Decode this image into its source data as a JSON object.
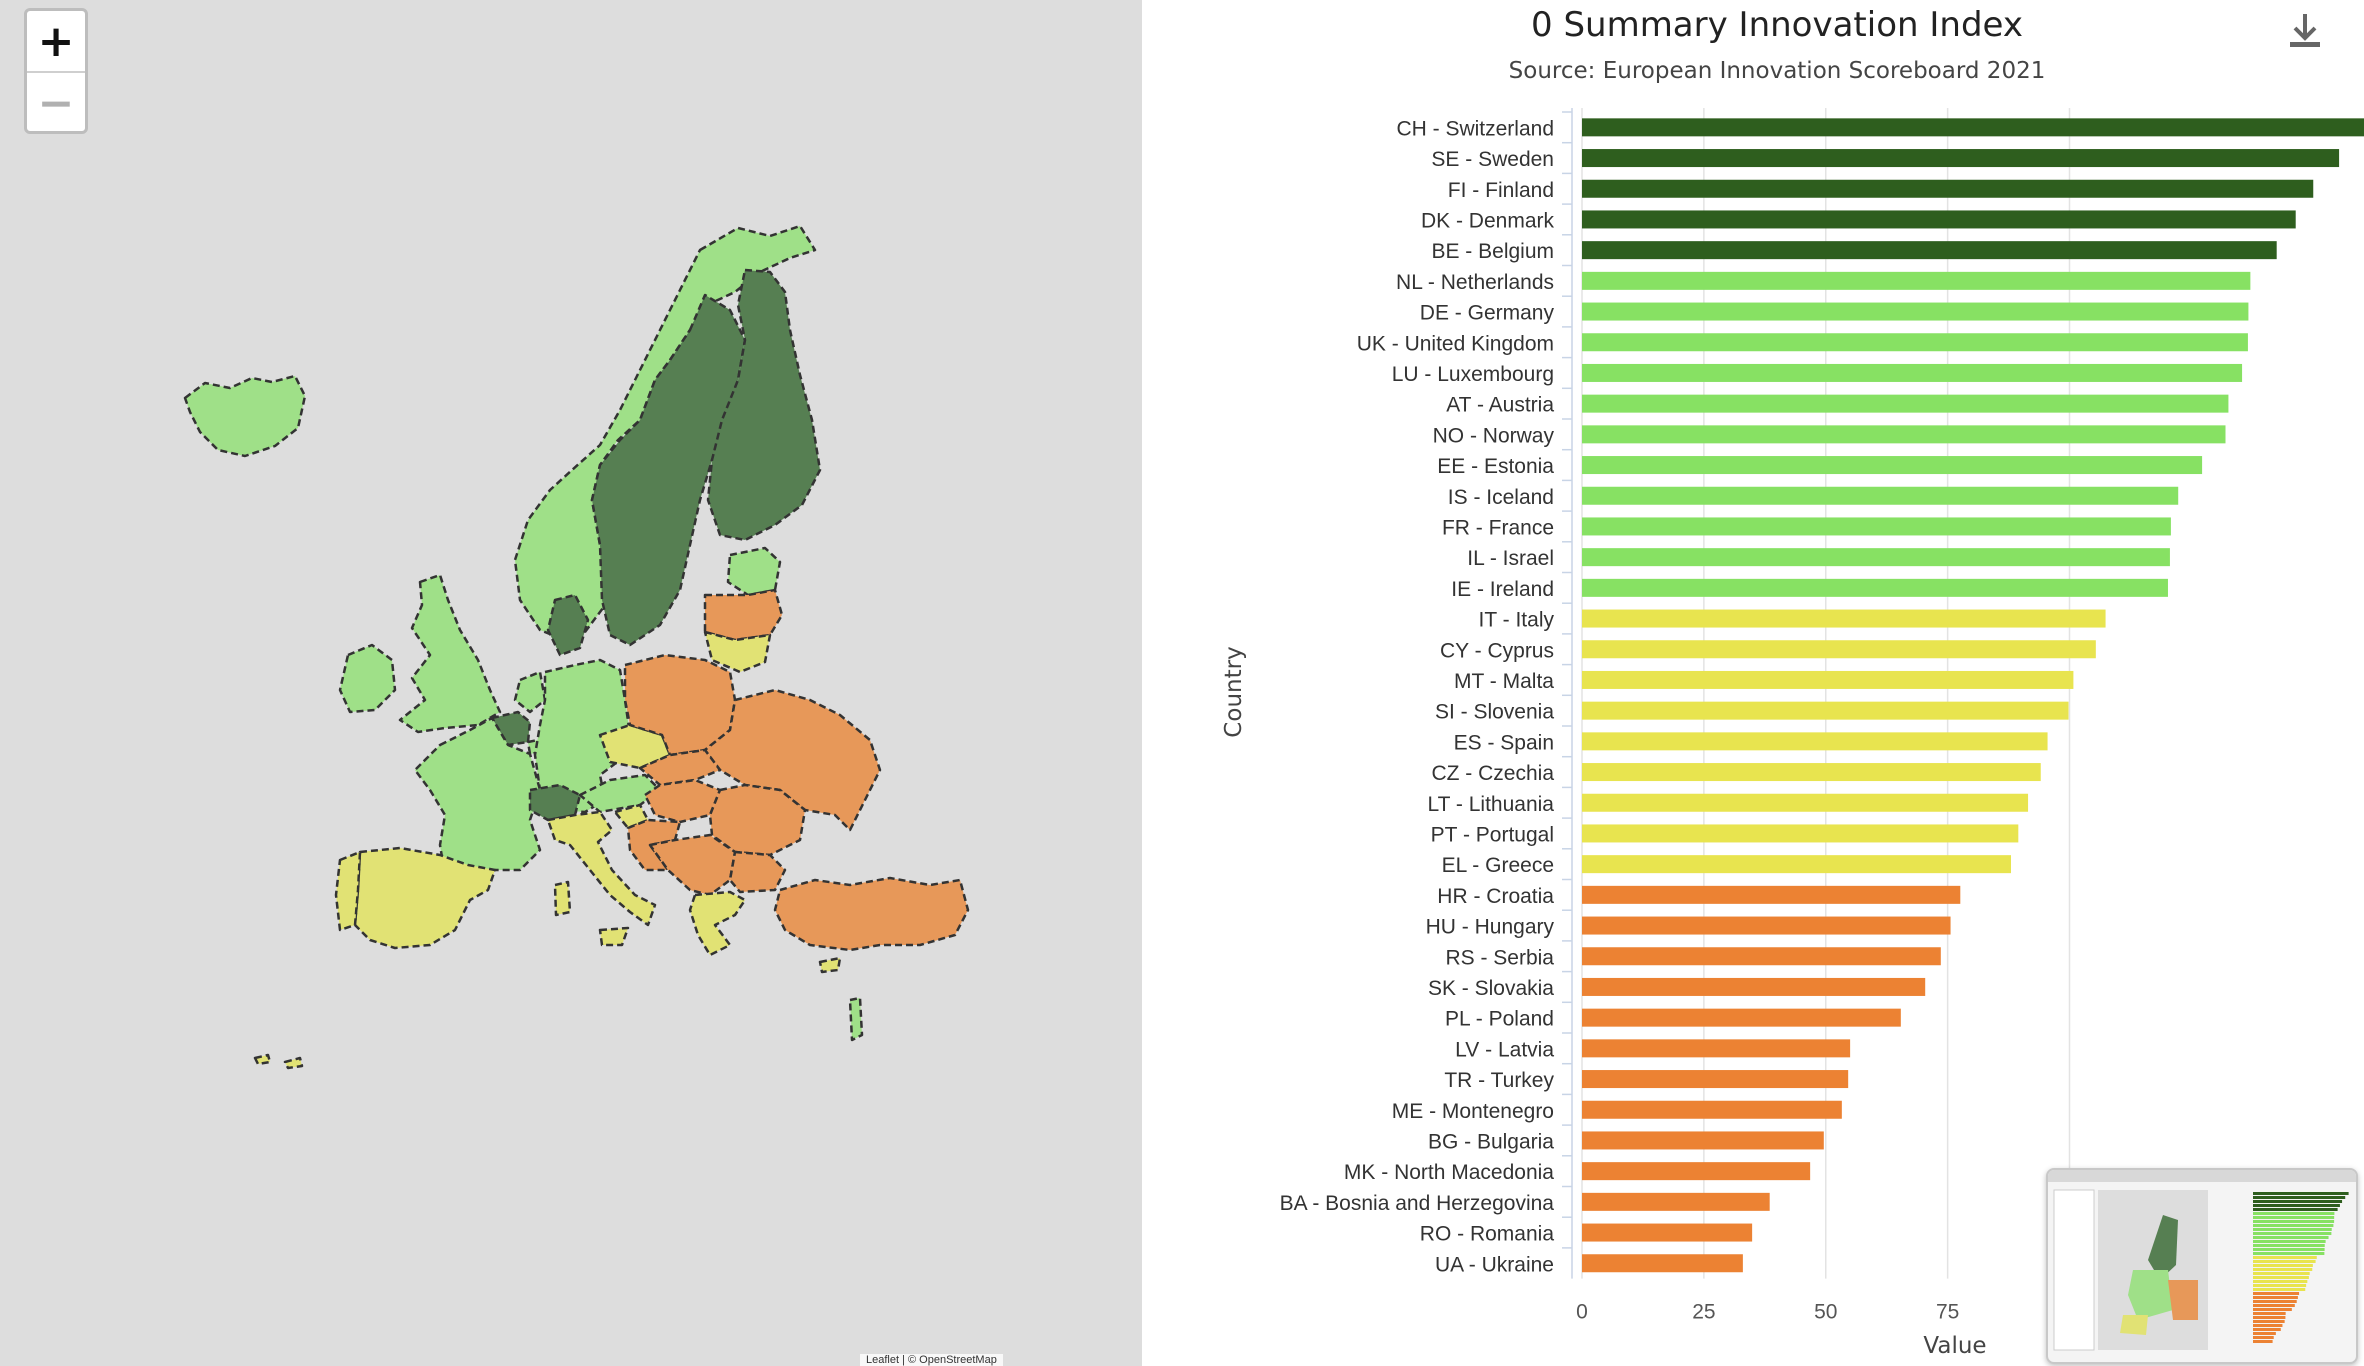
{
  "map": {
    "zoom_in_label": "+",
    "zoom_out_label": "−",
    "attribution": "Leaflet | © OpenStreetMap",
    "colors": {
      "leader": "#567f52",
      "strong": "#9fe088",
      "moderate": "#e1e274",
      "emerging": "#e79859",
      "background": "#dddddd",
      "outline": "#333333"
    }
  },
  "chart_data": {
    "type": "bar",
    "orientation": "horizontal",
    "title": "0 Summary Innovation Index",
    "subtitle": "Source: European Innovation Scoreboard 2021",
    "xlabel": "Value",
    "ylabel": "Country",
    "xlim": [
      0,
      160
    ],
    "xticks": [
      0,
      25,
      50,
      75,
      100
    ],
    "grid": true,
    "categories": [
      "CH - Switzerland",
      "SE - Sweden",
      "FI - Finland",
      "DK - Denmark",
      "BE - Belgium",
      "NL - Netherlands",
      "DE - Germany",
      "UK - United Kingdom",
      "LU - Luxembourg",
      "AT - Austria",
      "NO - Norway",
      "EE - Estonia",
      "IS - Iceland",
      "FR - France",
      "IL - Israel",
      "IE - Ireland",
      "IT - Italy",
      "CY - Cyprus",
      "MT - Malta",
      "SI - Slovenia",
      "ES - Spain",
      "CZ - Czechia",
      "LT - Lithuania",
      "PT - Portugal",
      "EL - Greece",
      "HR - Croatia",
      "HU - Hungary",
      "RS - Serbia",
      "SK - Slovakia",
      "PL - Poland",
      "LV - Latvia",
      "TR - Turkey",
      "ME - Montenegro",
      "BG - Bulgaria",
      "MK - North Macedonia",
      "BA - Bosnia and Herzegovina",
      "RO - Romania",
      "UA - Ukraine"
    ],
    "values": [
      161.0,
      155.3,
      150.0,
      146.4,
      142.5,
      137.1,
      136.7,
      136.6,
      135.4,
      132.6,
      132.0,
      127.2,
      122.3,
      120.8,
      120.6,
      120.2,
      107.4,
      105.4,
      100.8,
      99.8,
      95.5,
      94.1,
      91.5,
      89.5,
      88.0,
      77.6,
      75.6,
      73.6,
      70.4,
      65.4,
      55.0,
      54.6,
      53.3,
      49.6,
      46.8,
      38.5,
      34.9,
      33.0
    ],
    "groups": [
      "leader",
      "leader",
      "leader",
      "leader",
      "leader",
      "strong",
      "strong",
      "strong",
      "strong",
      "strong",
      "strong",
      "strong",
      "strong",
      "strong",
      "strong",
      "strong",
      "moderate",
      "moderate",
      "moderate",
      "moderate",
      "moderate",
      "moderate",
      "moderate",
      "moderate",
      "moderate",
      "emerging",
      "emerging",
      "emerging",
      "emerging",
      "emerging",
      "emerging",
      "emerging",
      "emerging",
      "emerging",
      "emerging",
      "emerging",
      "emerging",
      "emerging"
    ],
    "group_colors": {
      "leader": "#2e5e1e",
      "strong": "#87e163",
      "moderate": "#e8e44f",
      "emerging": "#ec8233"
    }
  }
}
